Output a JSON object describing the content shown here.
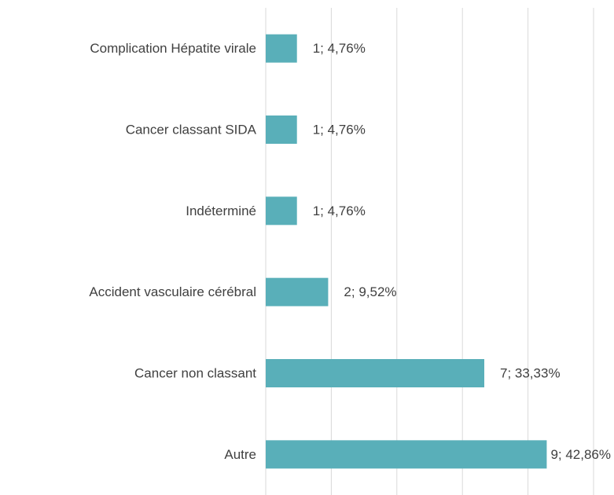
{
  "chart_data": {
    "type": "bar",
    "orientation": "horizontal",
    "categories": [
      "Complication Hépatite virale",
      "Cancer classant SIDA",
      "Indéterminé",
      "Accident vasculaire cérébral",
      "Cancer non classant",
      "Autre"
    ],
    "values": [
      1,
      1,
      1,
      2,
      7,
      9
    ],
    "value_labels": [
      "1; 4,76%",
      "1; 4,76%",
      "1; 4,76%",
      "2; 9,52%",
      "7; 33,33%",
      "9; 42,86%"
    ],
    "color": "#59afb9",
    "xlim": [
      0,
      10.5
    ],
    "xticks": [
      0,
      2.1,
      4.2,
      6.3,
      8.4,
      10.5
    ],
    "grid": true
  }
}
